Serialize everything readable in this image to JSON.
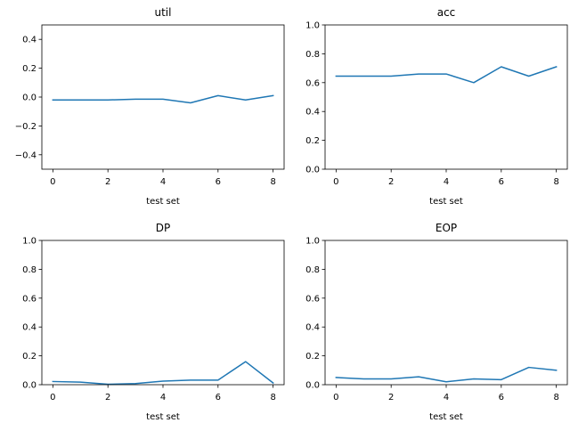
{
  "chart_data": [
    {
      "type": "line",
      "title": "util",
      "xlabel": "test set",
      "ylabel": "",
      "xlim": [
        -0.4,
        8.4
      ],
      "ylim": [
        -0.5,
        0.5
      ],
      "xticks": [
        0,
        2,
        4,
        6,
        8
      ],
      "xtick_labels": [
        "0",
        "2",
        "4",
        "6",
        "8"
      ],
      "yticks": [
        -0.4,
        -0.2,
        0.0,
        0.2,
        0.4
      ],
      "ytick_labels": [
        "−0.4",
        "−0.2",
        "0.0",
        "0.2",
        "0.4"
      ],
      "grid": false,
      "color": "#1f77b4",
      "x": [
        0,
        1,
        2,
        3,
        4,
        5,
        6,
        7,
        8
      ],
      "values": [
        -0.02,
        -0.02,
        -0.02,
        -0.015,
        -0.015,
        -0.04,
        0.01,
        -0.02,
        0.01
      ]
    },
    {
      "type": "line",
      "title": "acc",
      "xlabel": "test set",
      "ylabel": "",
      "xlim": [
        -0.4,
        8.4
      ],
      "ylim": [
        0.0,
        1.0
      ],
      "xticks": [
        0,
        2,
        4,
        6,
        8
      ],
      "xtick_labels": [
        "0",
        "2",
        "4",
        "6",
        "8"
      ],
      "yticks": [
        0.0,
        0.2,
        0.4,
        0.6,
        0.8,
        1.0
      ],
      "ytick_labels": [
        "0.0",
        "0.2",
        "0.4",
        "0.6",
        "0.8",
        "1.0"
      ],
      "grid": false,
      "color": "#1f77b4",
      "x": [
        0,
        1,
        2,
        3,
        4,
        5,
        6,
        7,
        8
      ],
      "values": [
        0.645,
        0.645,
        0.645,
        0.66,
        0.66,
        0.6,
        0.71,
        0.645,
        0.71
      ]
    },
    {
      "type": "line",
      "title": "DP",
      "xlabel": "test set",
      "ylabel": "",
      "xlim": [
        -0.4,
        8.4
      ],
      "ylim": [
        0.0,
        1.0
      ],
      "xticks": [
        0,
        2,
        4,
        6,
        8
      ],
      "xtick_labels": [
        "0",
        "2",
        "4",
        "6",
        "8"
      ],
      "yticks": [
        0.0,
        0.2,
        0.4,
        0.6,
        0.8,
        1.0
      ],
      "ytick_labels": [
        "0.0",
        "0.2",
        "0.4",
        "0.6",
        "0.8",
        "1.0"
      ],
      "grid": false,
      "color": "#1f77b4",
      "x": [
        0,
        1,
        2,
        3,
        4,
        5,
        6,
        7,
        8
      ],
      "values": [
        0.022,
        0.018,
        0.003,
        0.008,
        0.025,
        0.032,
        0.032,
        0.16,
        0.012
      ]
    },
    {
      "type": "line",
      "title": "EOP",
      "xlabel": "test set",
      "ylabel": "",
      "xlim": [
        -0.4,
        8.4
      ],
      "ylim": [
        0.0,
        1.0
      ],
      "xticks": [
        0,
        2,
        4,
        6,
        8
      ],
      "xtick_labels": [
        "0",
        "2",
        "4",
        "6",
        "8"
      ],
      "yticks": [
        0.0,
        0.2,
        0.4,
        0.6,
        0.8,
        1.0
      ],
      "ytick_labels": [
        "0.0",
        "0.2",
        "0.4",
        "0.6",
        "0.8",
        "1.0"
      ],
      "grid": false,
      "color": "#1f77b4",
      "x": [
        0,
        1,
        2,
        3,
        4,
        5,
        6,
        7,
        8
      ],
      "values": [
        0.05,
        0.04,
        0.04,
        0.055,
        0.02,
        0.04,
        0.035,
        0.12,
        0.1
      ]
    }
  ]
}
